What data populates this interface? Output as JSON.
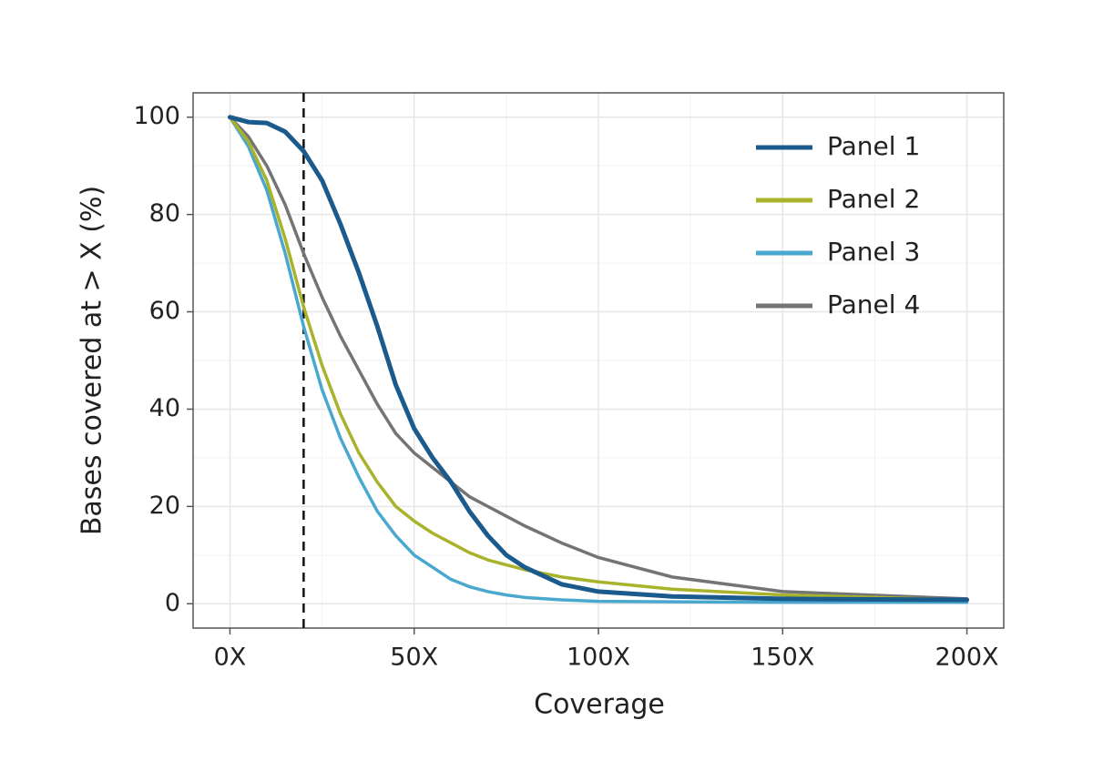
{
  "chart_data": {
    "type": "line",
    "x_label": "Coverage",
    "y_label": "Bases covered at > X (%)",
    "x": [
      0,
      5,
      10,
      15,
      20,
      25,
      30,
      35,
      40,
      45,
      50,
      55,
      60,
      65,
      70,
      75,
      80,
      90,
      100,
      120,
      150,
      200
    ],
    "series": [
      {
        "name": "Panel 1",
        "color": "#1b5a8c",
        "values": [
          100,
          99,
          98.8,
          97,
          93,
          87,
          78,
          68,
          57,
          45,
          36,
          30,
          25,
          19,
          14,
          10,
          7.5,
          4,
          2.5,
          1.5,
          1,
          0.8
        ]
      },
      {
        "name": "Panel 2",
        "color": "#a8b22a",
        "values": [
          100,
          95,
          87,
          75,
          61,
          49,
          39,
          31,
          25,
          20,
          17,
          14.5,
          12.5,
          10.5,
          9,
          8,
          7,
          5.5,
          4.5,
          3,
          1.8,
          0.8
        ]
      },
      {
        "name": "Panel 3",
        "color": "#4aa8cf",
        "values": [
          100,
          94,
          85,
          72,
          57,
          44,
          34,
          26,
          19,
          14,
          10,
          7.5,
          5,
          3.5,
          2.5,
          1.8,
          1.3,
          0.8,
          0.5,
          0.4,
          0.3,
          0.3
        ]
      },
      {
        "name": "Panel 4",
        "color": "#747474",
        "values": [
          100,
          96,
          90,
          82,
          72,
          63,
          55,
          48,
          41,
          35,
          31,
          28,
          25,
          22,
          20,
          18,
          16,
          12.5,
          9.5,
          5.5,
          2.5,
          1
        ]
      }
    ],
    "xlim": [
      -10,
      210
    ],
    "ylim": [
      -5,
      105
    ],
    "xticks": [
      {
        "value": 0,
        "label": "0X"
      },
      {
        "value": 50,
        "label": "50X"
      },
      {
        "value": 100,
        "label": "100X"
      },
      {
        "value": 150,
        "label": "150X"
      },
      {
        "value": 200,
        "label": "200X"
      }
    ],
    "yticks": [
      0,
      20,
      40,
      60,
      80,
      100
    ],
    "x_minor_grid": [
      25,
      75,
      125,
      175
    ],
    "y_minor_grid": [
      10,
      30,
      50,
      70,
      90
    ],
    "vline": 20,
    "grid": true,
    "legend": "top-right"
  }
}
